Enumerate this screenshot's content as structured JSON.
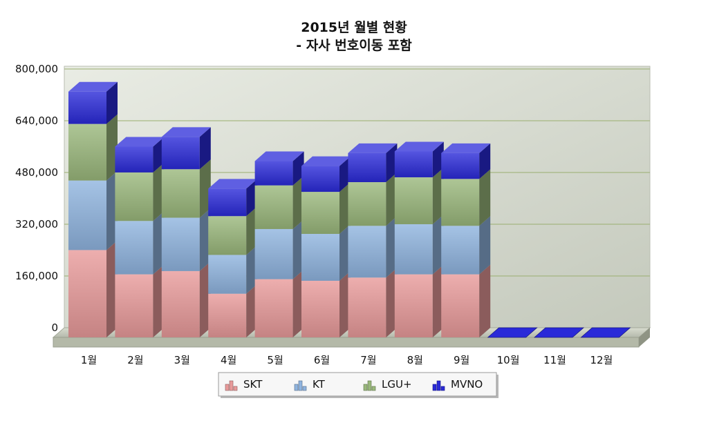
{
  "chart_data": {
    "type": "bar",
    "stacked": true,
    "style": "3d",
    "title": "2015년 월별 현황",
    "subtitle": "- 자사 번호이동 포함",
    "categories": [
      "1월",
      "2월",
      "3월",
      "4월",
      "5월",
      "6월",
      "7월",
      "8월",
      "9월",
      "10월",
      "11월",
      "12월"
    ],
    "ylim": [
      0,
      800000
    ],
    "yticks": [
      "0",
      "160,000",
      "320,000",
      "480,000",
      "640,000",
      "800,000"
    ],
    "grid": true,
    "legend_position": "bottom",
    "series": [
      {
        "name": "SKT",
        "color": "#e89a9a",
        "values": [
          270000,
          195000,
          205000,
          135000,
          180000,
          175000,
          185000,
          195000,
          195000,
          0,
          0,
          0
        ]
      },
      {
        "name": "KT",
        "color": "#8fb4df",
        "values": [
          215000,
          165000,
          165000,
          120000,
          155000,
          145000,
          160000,
          155000,
          150000,
          0,
          0,
          0
        ]
      },
      {
        "name": "LGU+",
        "color": "#9ab87c",
        "values": [
          175000,
          150000,
          150000,
          120000,
          135000,
          130000,
          135000,
          145000,
          145000,
          0,
          0,
          0
        ]
      },
      {
        "name": "MVNO",
        "color": "#2a2ad8",
        "values": [
          100000,
          80000,
          100000,
          85000,
          75000,
          80000,
          90000,
          80000,
          80000,
          0,
          0,
          0
        ]
      }
    ]
  }
}
